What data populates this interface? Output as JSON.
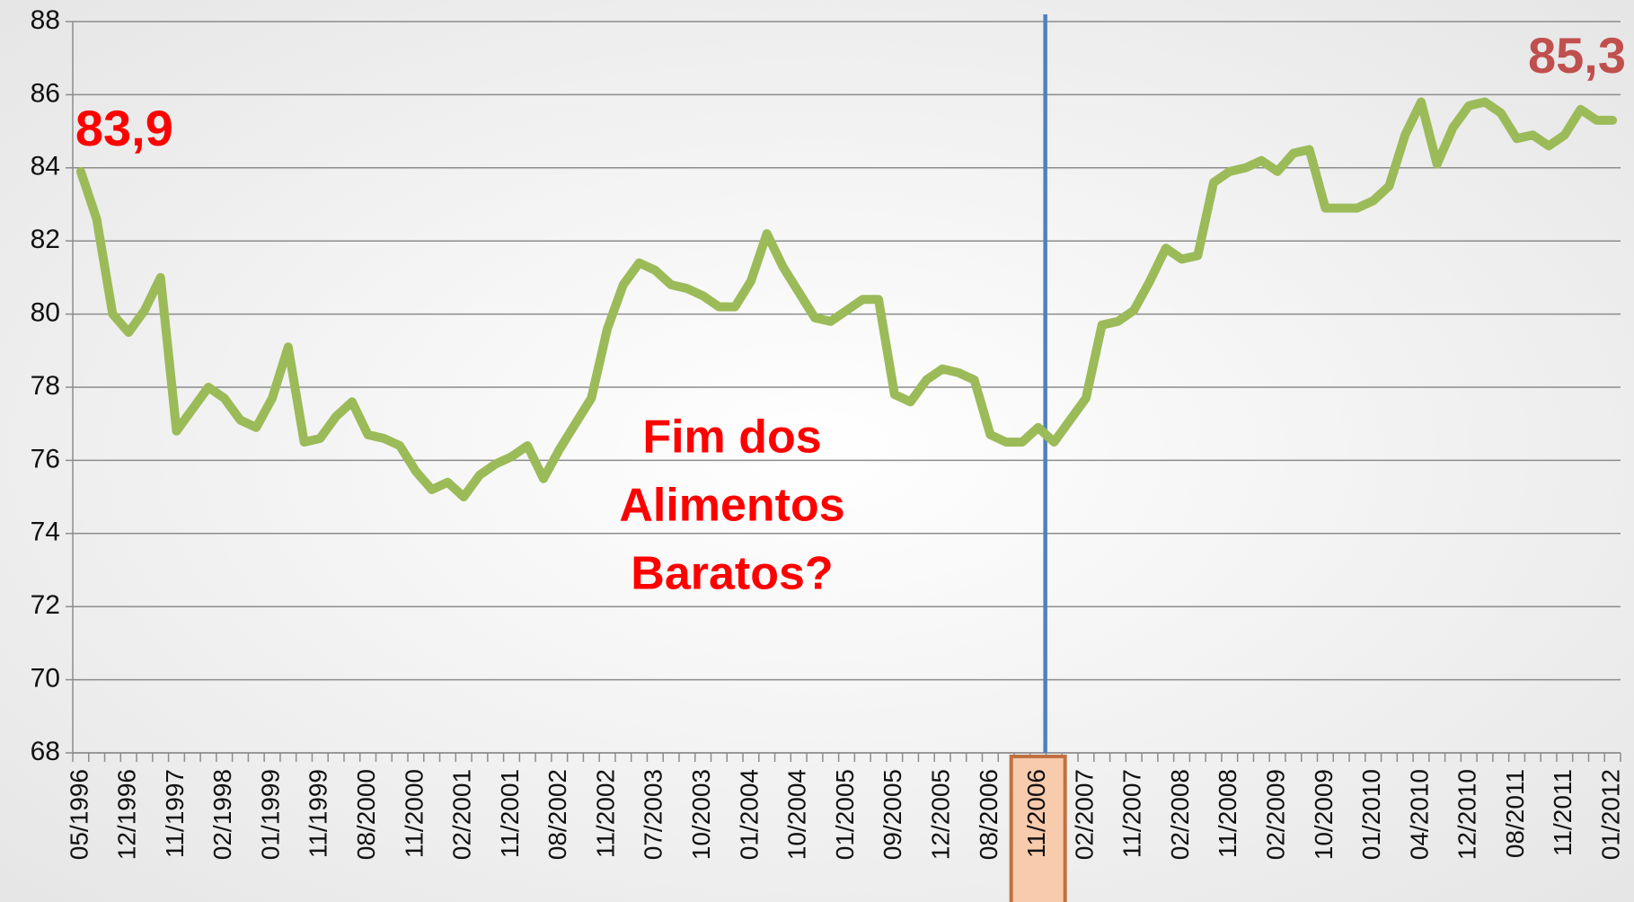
{
  "chart_data": {
    "type": "line",
    "categories": [
      "05/1996",
      null,
      null,
      "12/1996",
      null,
      null,
      "11/1997",
      null,
      null,
      "02/1998",
      null,
      null,
      "01/1999",
      null,
      null,
      "11/1999",
      null,
      null,
      "08/2000",
      null,
      null,
      "11/2000",
      null,
      null,
      "02/2001",
      null,
      null,
      "11/2001",
      null,
      null,
      "08/2002",
      null,
      null,
      "11/2002",
      null,
      null,
      "07/2003",
      null,
      null,
      "10/2003",
      null,
      null,
      "01/2004",
      null,
      null,
      "10/2004",
      null,
      null,
      "01/2005",
      null,
      null,
      "09/2005",
      null,
      null,
      "12/2005",
      null,
      null,
      "08/2006",
      null,
      null,
      "11/2006",
      null,
      null,
      "02/2007",
      null,
      null,
      "11/2007",
      null,
      null,
      "02/2008",
      null,
      null,
      "11/2008",
      null,
      null,
      "02/2009",
      null,
      null,
      "10/2009",
      null,
      null,
      "01/2010",
      null,
      null,
      "04/2010",
      null,
      null,
      "12/2010",
      null,
      null,
      "08/2011",
      null,
      null,
      "11/2011",
      null,
      null,
      "01/2012"
    ],
    "values": [
      83.9,
      82.6,
      80.0,
      79.5,
      80.1,
      81.0,
      76.8,
      77.4,
      78.0,
      77.7,
      77.1,
      76.9,
      77.7,
      79.1,
      76.5,
      76.6,
      77.2,
      77.6,
      76.7,
      76.6,
      76.4,
      75.7,
      75.2,
      75.4,
      75.0,
      75.6,
      75.9,
      76.1,
      76.4,
      75.5,
      76.3,
      77.0,
      77.7,
      79.6,
      80.8,
      81.4,
      81.2,
      80.8,
      80.7,
      80.5,
      80.2,
      80.2,
      80.9,
      82.2,
      81.3,
      80.6,
      79.9,
      79.8,
      80.1,
      80.4,
      80.4,
      77.8,
      77.6,
      78.2,
      78.5,
      78.4,
      78.2,
      76.7,
      76.5,
      76.5,
      76.9,
      76.5,
      77.1,
      77.7,
      79.7,
      79.8,
      80.1,
      80.9,
      81.8,
      81.5,
      81.6,
      83.6,
      83.9,
      84.0,
      84.2,
      83.9,
      84.4,
      84.5,
      82.9,
      82.9,
      82.9,
      83.1,
      83.5,
      84.9,
      85.8,
      84.1,
      85.1,
      85.7,
      85.8,
      85.5,
      84.8,
      84.9,
      84.6,
      84.9,
      85.6,
      85.3,
      85.3
    ],
    "value_labels": [
      "83,9",
      null,
      null,
      null,
      null,
      null,
      null,
      null,
      null,
      null,
      null,
      null,
      null,
      null,
      null,
      null,
      null,
      null,
      null,
      null,
      null,
      null,
      null,
      null,
      null,
      null,
      null,
      null,
      null,
      null,
      null,
      null,
      null,
      null,
      null,
      null,
      null,
      null,
      null,
      null,
      null,
      null,
      null,
      null,
      null,
      null,
      null,
      null,
      null,
      null,
      null,
      null,
      null,
      null,
      null,
      null,
      null,
      null,
      null,
      null,
      null,
      null,
      null,
      null,
      null,
      null,
      null,
      null,
      null,
      null,
      null,
      null,
      null,
      null,
      null,
      null,
      null,
      null,
      null,
      null,
      null,
      null,
      null,
      null,
      null,
      null,
      null,
      null,
      null,
      null,
      null,
      null,
      null,
      null,
      null,
      null,
      "85,3"
    ],
    "value_label_colors": [
      "#ff0000",
      "#c0504d"
    ],
    "color": "#9bbb59",
    "ylim": [
      68,
      88
    ],
    "yticks": [
      68,
      70,
      72,
      74,
      76,
      78,
      80,
      82,
      84,
      86,
      88
    ],
    "grid": true,
    "marker": "11/2006",
    "marker_color": "#4f81bd",
    "annotation": [
      "Fim dos",
      "Alimentos",
      "Baratos?"
    ],
    "annotation_color": "#ff0000"
  }
}
